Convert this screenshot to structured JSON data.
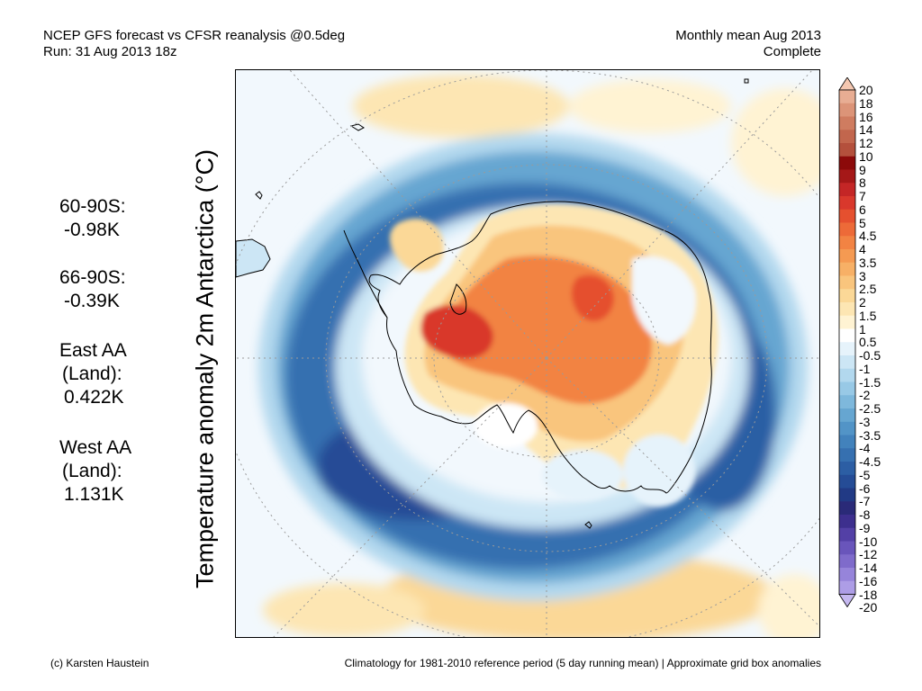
{
  "header": {
    "title_line1": "NCEP GFS forecast vs CFSR reanalysis @0.5deg",
    "title_line2": "Run: 31 Aug 2013 18z",
    "right_line1": "Monthly mean Aug 2013",
    "right_line2": "Complete"
  },
  "axis_label": "Temperature anomaly 2m Antarctica (°C)",
  "stats": [
    {
      "label": "60-90S:",
      "value": "-0.98K"
    },
    {
      "label": "66-90S:",
      "value": "-0.39K"
    },
    {
      "label": "East AA",
      "sub": "(Land):",
      "value": "0.422K"
    },
    {
      "label": "West AA",
      "sub": "(Land):",
      "value": "1.131K"
    }
  ],
  "colorbar": {
    "labels": [
      "20",
      "18",
      "16",
      "14",
      "12",
      "10",
      "9",
      "8",
      "7",
      "6",
      "5",
      "4.5",
      "4",
      "3.5",
      "3",
      "2.5",
      "2",
      "1.5",
      "1",
      "0.5",
      "-0.5",
      "-1",
      "-1.5",
      "-2",
      "-2.5",
      "-3",
      "-3.5",
      "-4",
      "-4.5",
      "-5",
      "-6",
      "-7",
      "-8",
      "-9",
      "-10",
      "-12",
      "-14",
      "-16",
      "-18",
      "-20"
    ],
    "colors": [
      "#f4c7b0",
      "#e8ad93",
      "#dc9478",
      "#cf7c60",
      "#c2664d",
      "#b4503c",
      "#8c0a0a",
      "#a51818",
      "#c42626",
      "#d9382c",
      "#e5502f",
      "#ed6a38",
      "#f28343",
      "#f59a52",
      "#f7b066",
      "#f9c57d",
      "#fbd897",
      "#fde6b3",
      "#fff3d3",
      "#ffffff",
      "#e6f3fb",
      "#cce6f5",
      "#b2d8ee",
      "#98c9e6",
      "#7eb8dc",
      "#66a6d1",
      "#5294c7",
      "#4282bc",
      "#3670b0",
      "#2c5ea4",
      "#254c96",
      "#213a85",
      "#2a2a78",
      "#3d2f8e",
      "#5340a6",
      "#6955bb",
      "#7f6bcb",
      "#9684da",
      "#ad9de6",
      "#c5b8f0"
    ]
  },
  "footer": {
    "left": "(c) Karsten Haustein",
    "right": "Climatology for 1981-2010 reference period (5 day running mean) | Approximate grid box anomalies"
  }
}
